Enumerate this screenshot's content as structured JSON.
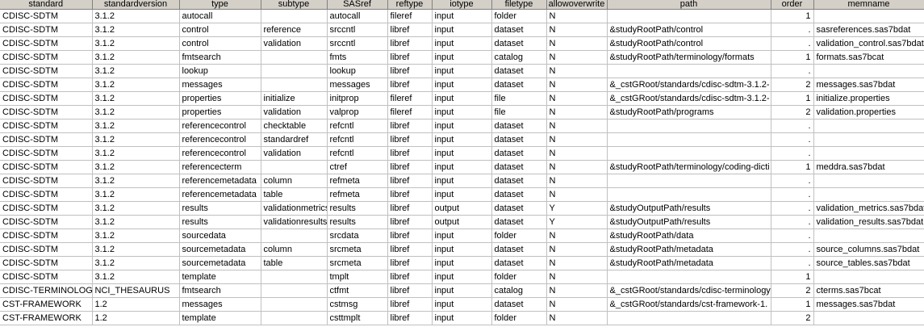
{
  "columns": [
    "standard",
    "standardversion",
    "type",
    "subtype",
    "SASref",
    "reftype",
    "iotype",
    "filetype",
    "allowoverwrite",
    "path",
    "order",
    "memname"
  ],
  "rows": [
    [
      "CDISC-SDTM",
      "3.1.2",
      "autocall",
      "",
      "autocall",
      "fileref",
      "input",
      "folder",
      "N",
      "",
      "1",
      ""
    ],
    [
      "CDISC-SDTM",
      "3.1.2",
      "control",
      "reference",
      "srccntl",
      "libref",
      "input",
      "dataset",
      "N",
      "&studyRootPath/control",
      ".",
      "sasreferences.sas7bdat"
    ],
    [
      "CDISC-SDTM",
      "3.1.2",
      "control",
      "validation",
      "srccntl",
      "libref",
      "input",
      "dataset",
      "N",
      "&studyRootPath/control",
      ".",
      "validation_control.sas7bdat"
    ],
    [
      "CDISC-SDTM",
      "3.1.2",
      "fmtsearch",
      "",
      "fmts",
      "libref",
      "input",
      "catalog",
      "N",
      "&studyRootPath/terminology/formats",
      "1",
      "formats.sas7bcat"
    ],
    [
      "CDISC-SDTM",
      "3.1.2",
      "lookup",
      "",
      "lookup",
      "libref",
      "input",
      "dataset",
      "N",
      "",
      ".",
      ""
    ],
    [
      "CDISC-SDTM",
      "3.1.2",
      "messages",
      "",
      "messages",
      "libref",
      "input",
      "dataset",
      "N",
      "&_cstGRoot/standards/cdisc-sdtm-3.1.2-",
      "2",
      "messages.sas7bdat"
    ],
    [
      "CDISC-SDTM",
      "3.1.2",
      "properties",
      "initialize",
      "initprop",
      "fileref",
      "input",
      "file",
      "N",
      "&_cstGRoot/standards/cdisc-sdtm-3.1.2-",
      "1",
      "initialize.properties"
    ],
    [
      "CDISC-SDTM",
      "3.1.2",
      "properties",
      "validation",
      "valprop",
      "fileref",
      "input",
      "file",
      "N",
      "&studyRootPath/programs",
      "2",
      "validation.properties"
    ],
    [
      "CDISC-SDTM",
      "3.1.2",
      "referencecontrol",
      "checktable",
      "refcntl",
      "libref",
      "input",
      "dataset",
      "N",
      "",
      ".",
      ""
    ],
    [
      "CDISC-SDTM",
      "3.1.2",
      "referencecontrol",
      "standardref",
      "refcntl",
      "libref",
      "input",
      "dataset",
      "N",
      "",
      ".",
      ""
    ],
    [
      "CDISC-SDTM",
      "3.1.2",
      "referencecontrol",
      "validation",
      "refcntl",
      "libref",
      "input",
      "dataset",
      "N",
      "",
      ".",
      ""
    ],
    [
      "CDISC-SDTM",
      "3.1.2",
      "referencecterm",
      "",
      "ctref",
      "libref",
      "input",
      "dataset",
      "N",
      "&studyRootPath/terminology/coding-dicti",
      "1",
      "meddra.sas7bdat"
    ],
    [
      "CDISC-SDTM",
      "3.1.2",
      "referencemetadata",
      "column",
      "refmeta",
      "libref",
      "input",
      "dataset",
      "N",
      "",
      ".",
      ""
    ],
    [
      "CDISC-SDTM",
      "3.1.2",
      "referencemetadata",
      "table",
      "refmeta",
      "libref",
      "input",
      "dataset",
      "N",
      "",
      ".",
      ""
    ],
    [
      "CDISC-SDTM",
      "3.1.2",
      "results",
      "validationmetrics",
      "results",
      "libref",
      "output",
      "dataset",
      "Y",
      "&studyOutputPath/results",
      ".",
      "validation_metrics.sas7bdat"
    ],
    [
      "CDISC-SDTM",
      "3.1.2",
      "results",
      "validationresults",
      "results",
      "libref",
      "output",
      "dataset",
      "Y",
      "&studyOutputPath/results",
      ".",
      "validation_results.sas7bdat"
    ],
    [
      "CDISC-SDTM",
      "3.1.2",
      "sourcedata",
      "",
      "srcdata",
      "libref",
      "input",
      "folder",
      "N",
      "&studyRootPath/data",
      ".",
      ""
    ],
    [
      "CDISC-SDTM",
      "3.1.2",
      "sourcemetadata",
      "column",
      "srcmeta",
      "libref",
      "input",
      "dataset",
      "N",
      "&studyRootPath/metadata",
      ".",
      "source_columns.sas7bdat"
    ],
    [
      "CDISC-SDTM",
      "3.1.2",
      "sourcemetadata",
      "table",
      "srcmeta",
      "libref",
      "input",
      "dataset",
      "N",
      "&studyRootPath/metadata",
      ".",
      "source_tables.sas7bdat"
    ],
    [
      "CDISC-SDTM",
      "3.1.2",
      "template",
      "",
      "tmplt",
      "libref",
      "input",
      "folder",
      "N",
      "",
      "1",
      ""
    ],
    [
      "CDISC-TERMINOLOGY",
      "NCI_THESAURUS",
      "fmtsearch",
      "",
      "ctfmt",
      "libref",
      "input",
      "catalog",
      "N",
      "&_cstGRoot/standards/cdisc-terminology",
      "2",
      "cterms.sas7bcat"
    ],
    [
      "CST-FRAMEWORK",
      "1.2",
      "messages",
      "",
      "cstmsg",
      "libref",
      "input",
      "dataset",
      "N",
      "&_cstGRoot/standards/cst-framework-1.",
      "1",
      "messages.sas7bdat"
    ],
    [
      "CST-FRAMEWORK",
      "1.2",
      "template",
      "",
      "csttmplt",
      "libref",
      "input",
      "folder",
      "N",
      "",
      "2",
      ""
    ]
  ]
}
